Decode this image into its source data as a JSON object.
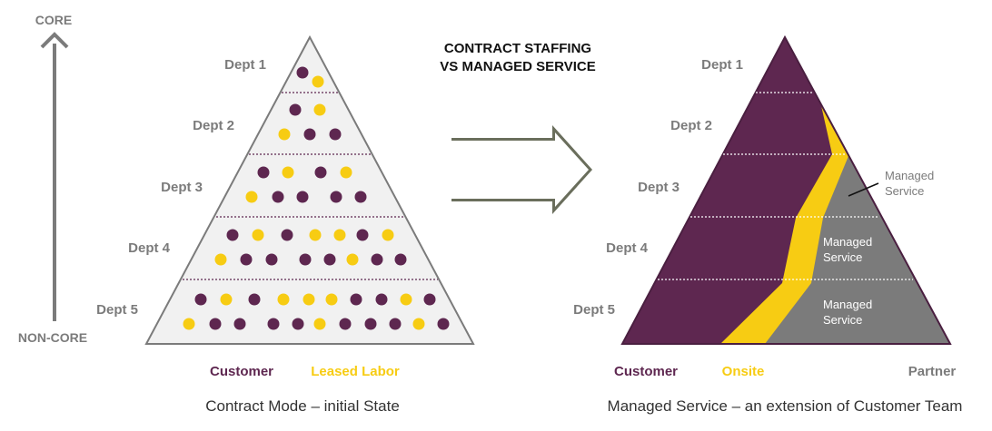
{
  "title": {
    "line1": "CONTRACT STAFFING",
    "line2": "VS MANAGED SERVICE"
  },
  "axis": {
    "top_label": "CORE",
    "bottom_label": "NON-CORE"
  },
  "departments": [
    "Dept 1",
    "Dept 2",
    "Dept 3",
    "Dept 4",
    "Dept 5"
  ],
  "left_diagram": {
    "caption": "Contract Mode – initial State",
    "legend": [
      {
        "label": "Customer",
        "color": "#5e2750"
      },
      {
        "label": "Leased Labor",
        "color": "#f7cc13"
      }
    ]
  },
  "right_diagram": {
    "caption": "Managed Service – an extension of Customer Team",
    "legend": [
      {
        "label": "Customer",
        "color": "#5e2750"
      },
      {
        "label": "Onsite",
        "color": "#f7cc13"
      },
      {
        "label": "Partner",
        "color": "#7b7b7b"
      }
    ],
    "managed_service_labels": [
      {
        "line1": "Managed",
        "line2": "Service"
      },
      {
        "line1": "Managed",
        "line2": "Service"
      },
      {
        "line1": "Managed",
        "line2": "Service"
      }
    ]
  },
  "colors": {
    "customer": "#5e2750",
    "leased": "#f7cc13",
    "partner": "#7b7b7b",
    "triangle_fill": "#f1f1f1",
    "outline": "#7b7b7b",
    "arrow": "#6a6e5c"
  }
}
